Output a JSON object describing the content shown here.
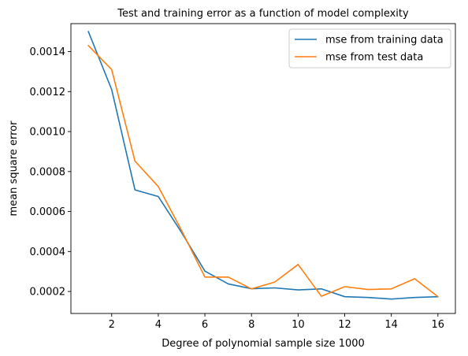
{
  "chart_data": {
    "type": "line",
    "title": "Test and training error as a function of model complexity",
    "xlabel": "Degree of polynomial sample size 1000",
    "ylabel": "mean square error",
    "xlim": [
      0.25,
      16.75
    ],
    "ylim": [
      9e-05,
      0.00154
    ],
    "xticks": [
      2,
      4,
      6,
      8,
      10,
      12,
      14,
      16
    ],
    "xtick_labels": [
      "2",
      "4",
      "6",
      "8",
      "10",
      "12",
      "14",
      "16"
    ],
    "yticks": [
      0.0002,
      0.0004,
      0.0006,
      0.0008,
      0.001,
      0.0012,
      0.0014
    ],
    "ytick_labels": [
      "0.0002",
      "0.0004",
      "0.0006",
      "0.0008",
      "0.0010",
      "0.0012",
      "0.0014"
    ],
    "grid": false,
    "legend_position": "top-right",
    "x": [
      1,
      2,
      3,
      4,
      5,
      6,
      7,
      8,
      9,
      10,
      11,
      12,
      13,
      14,
      15,
      16
    ],
    "series": [
      {
        "name": "mse from training data",
        "color": "#1f77b4",
        "values": [
          0.0015,
          0.00121,
          0.000708,
          0.000675,
          0.000495,
          0.000302,
          0.000238,
          0.000214,
          0.000218,
          0.000208,
          0.000213,
          0.000174,
          0.00017,
          0.000162,
          0.00017,
          0.000174
        ]
      },
      {
        "name": "mse from test data",
        "color": "#ff7f0e",
        "values": [
          0.00143,
          0.00131,
          0.000852,
          0.000725,
          0.000505,
          0.000272,
          0.000272,
          0.000213,
          0.000247,
          0.000335,
          0.000176,
          0.000224,
          0.00021,
          0.000213,
          0.000264,
          0.000174
        ]
      }
    ]
  }
}
